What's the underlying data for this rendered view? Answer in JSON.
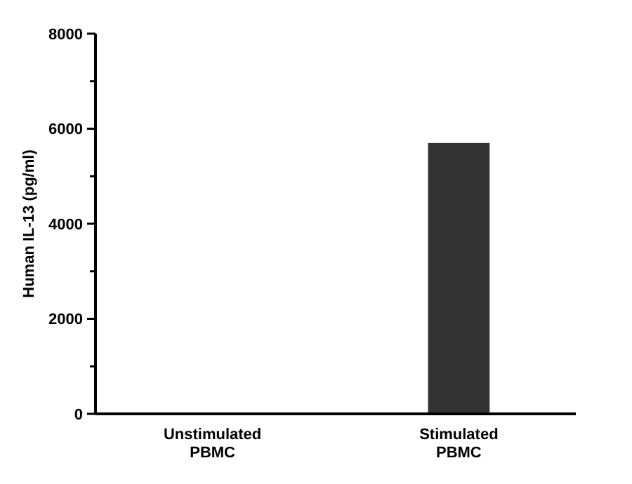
{
  "chart_data": {
    "type": "bar",
    "ylabel": "Human IL-13 (pg/ml)",
    "categories": [
      "Unstimulated\nPBMC",
      "Stimulated\nPBMC"
    ],
    "values": [
      0,
      5700
    ],
    "color": "#333333",
    "ylim": [
      0,
      8000
    ],
    "yticks": [
      0,
      {
        "value": 1000,
        "label": null
      },
      2000,
      {
        "value": 3000,
        "label": null
      },
      4000,
      {
        "value": 5000,
        "label": null
      },
      6000,
      {
        "value": 7000,
        "label": null
      },
      8000
    ],
    "grid": false
  }
}
